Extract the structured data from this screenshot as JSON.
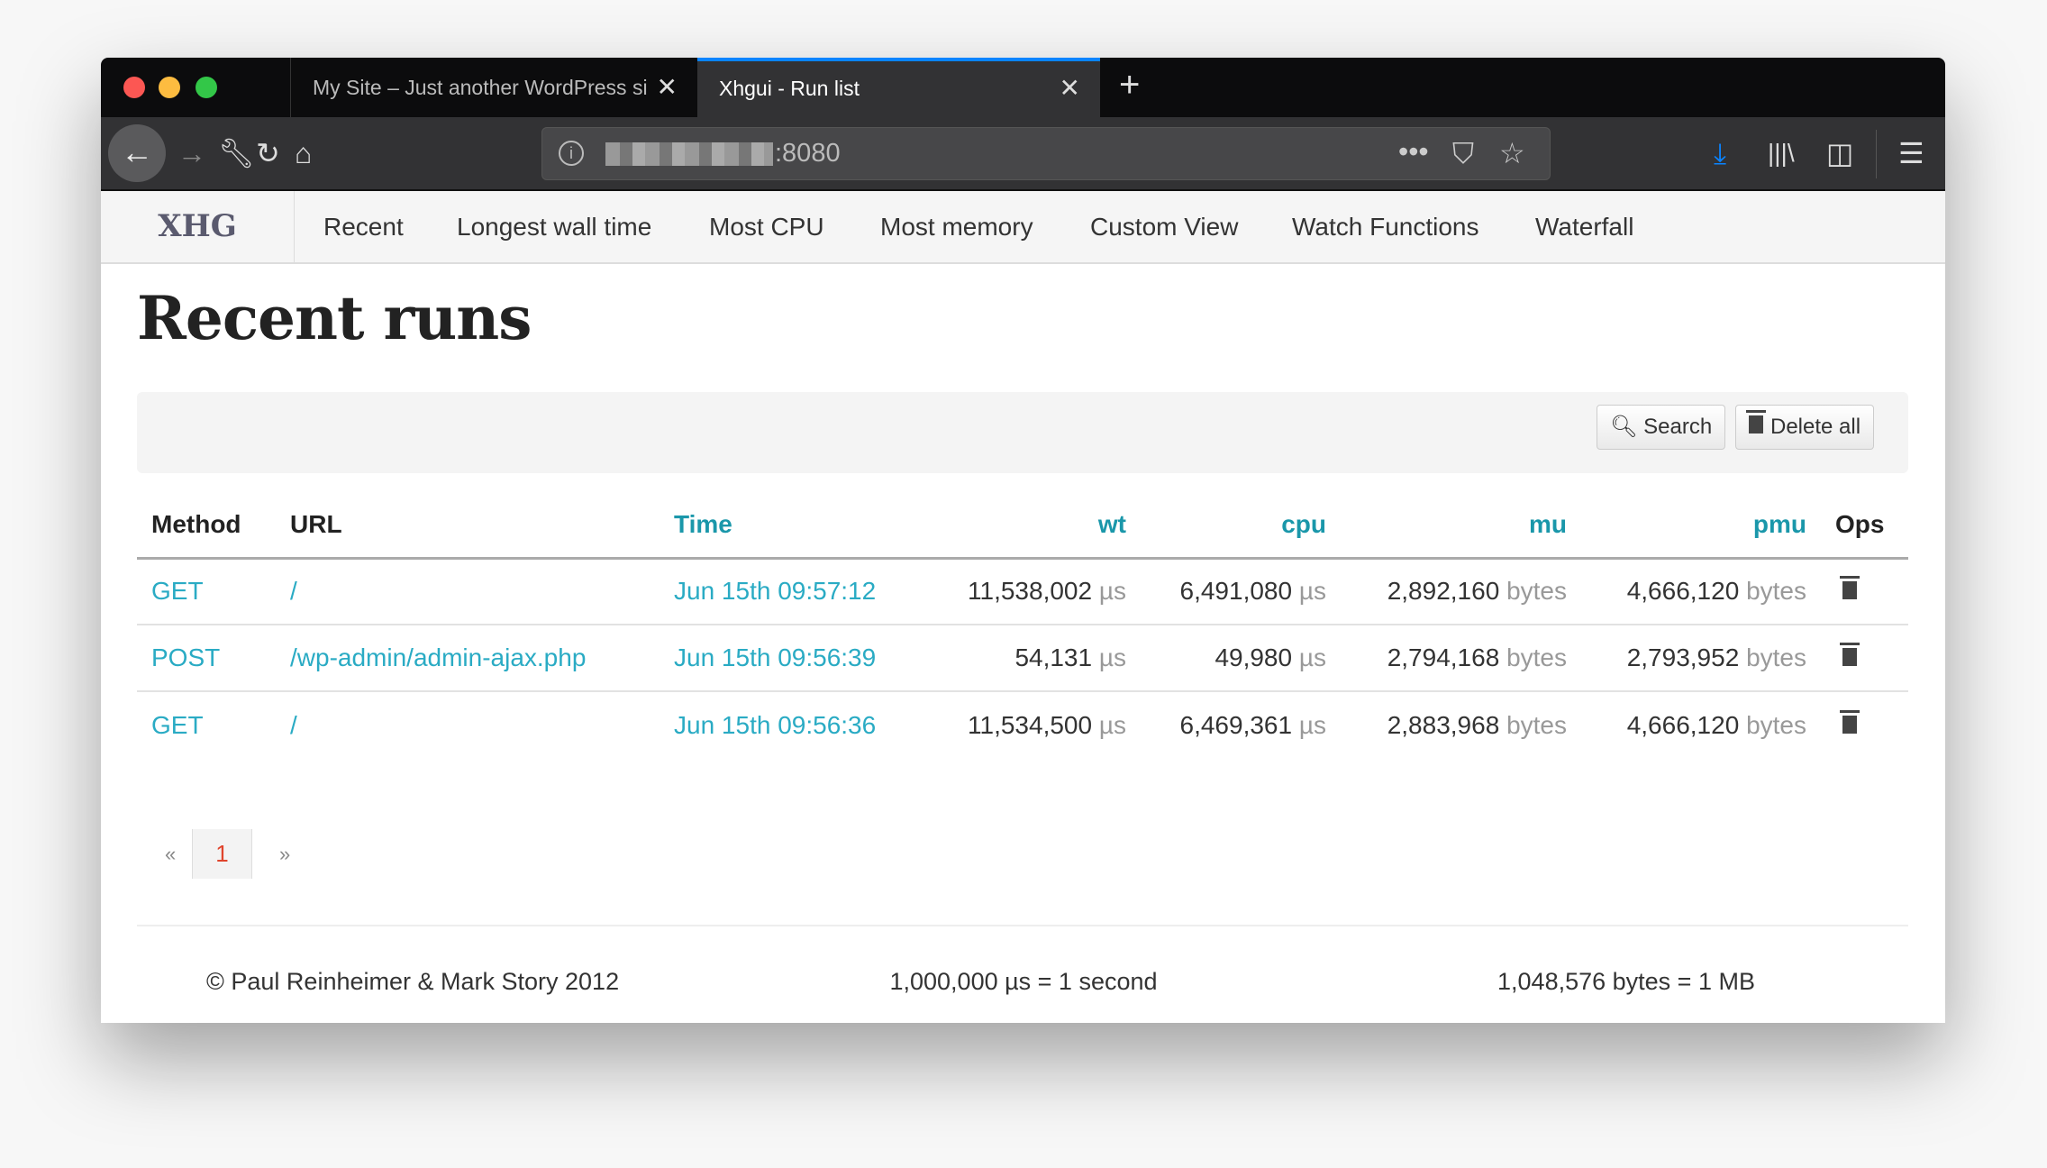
{
  "browser": {
    "tabs": [
      {
        "title": "My Site – Just another WordPress si",
        "active": false
      },
      {
        "title": "Xhgui - Run list",
        "active": true
      }
    ],
    "url_host_suffix": ":8080",
    "accent": "#0a84ff"
  },
  "nav": {
    "brand": "XHG",
    "items": [
      "Recent",
      "Longest wall time",
      "Most CPU",
      "Most memory",
      "Custom View",
      "Watch Functions",
      "Waterfall"
    ]
  },
  "page": {
    "title": "Recent runs",
    "search_label": "Search",
    "delete_all_label": "Delete all"
  },
  "table": {
    "headers": {
      "method": "Method",
      "url": "URL",
      "time": "Time",
      "wt": "wt",
      "cpu": "cpu",
      "mu": "mu",
      "pmu": "pmu",
      "ops": "Ops"
    },
    "rows": [
      {
        "method": "GET",
        "url": "/",
        "time": "Jun 15th 09:57:12",
        "wt": "11,538,002",
        "cpu": "6,491,080",
        "mu": "2,892,160",
        "pmu": "4,666,120"
      },
      {
        "method": "POST",
        "url": "/wp-admin/admin-ajax.php",
        "time": "Jun 15th 09:56:39",
        "wt": "54,131",
        "cpu": "49,980",
        "mu": "2,794,168",
        "pmu": "2,793,952"
      },
      {
        "method": "GET",
        "url": "/",
        "time": "Jun 15th 09:56:36",
        "wt": "11,534,500",
        "cpu": "6,469,361",
        "mu": "2,883,968",
        "pmu": "4,666,120"
      }
    ],
    "time_unit": "µs",
    "mem_unit": "bytes"
  },
  "pagination": {
    "prev": "«",
    "current": "1",
    "next": "»"
  },
  "footer": {
    "copyright": "© Paul Reinheimer & Mark Story 2012",
    "time_note": "1,000,000 µs = 1 second",
    "mem_note": "1,048,576 bytes = 1 MB"
  },
  "colors": {
    "link": "#2aabc4",
    "sorted_header": "#1a97aa",
    "current_page": "#e0442c"
  }
}
